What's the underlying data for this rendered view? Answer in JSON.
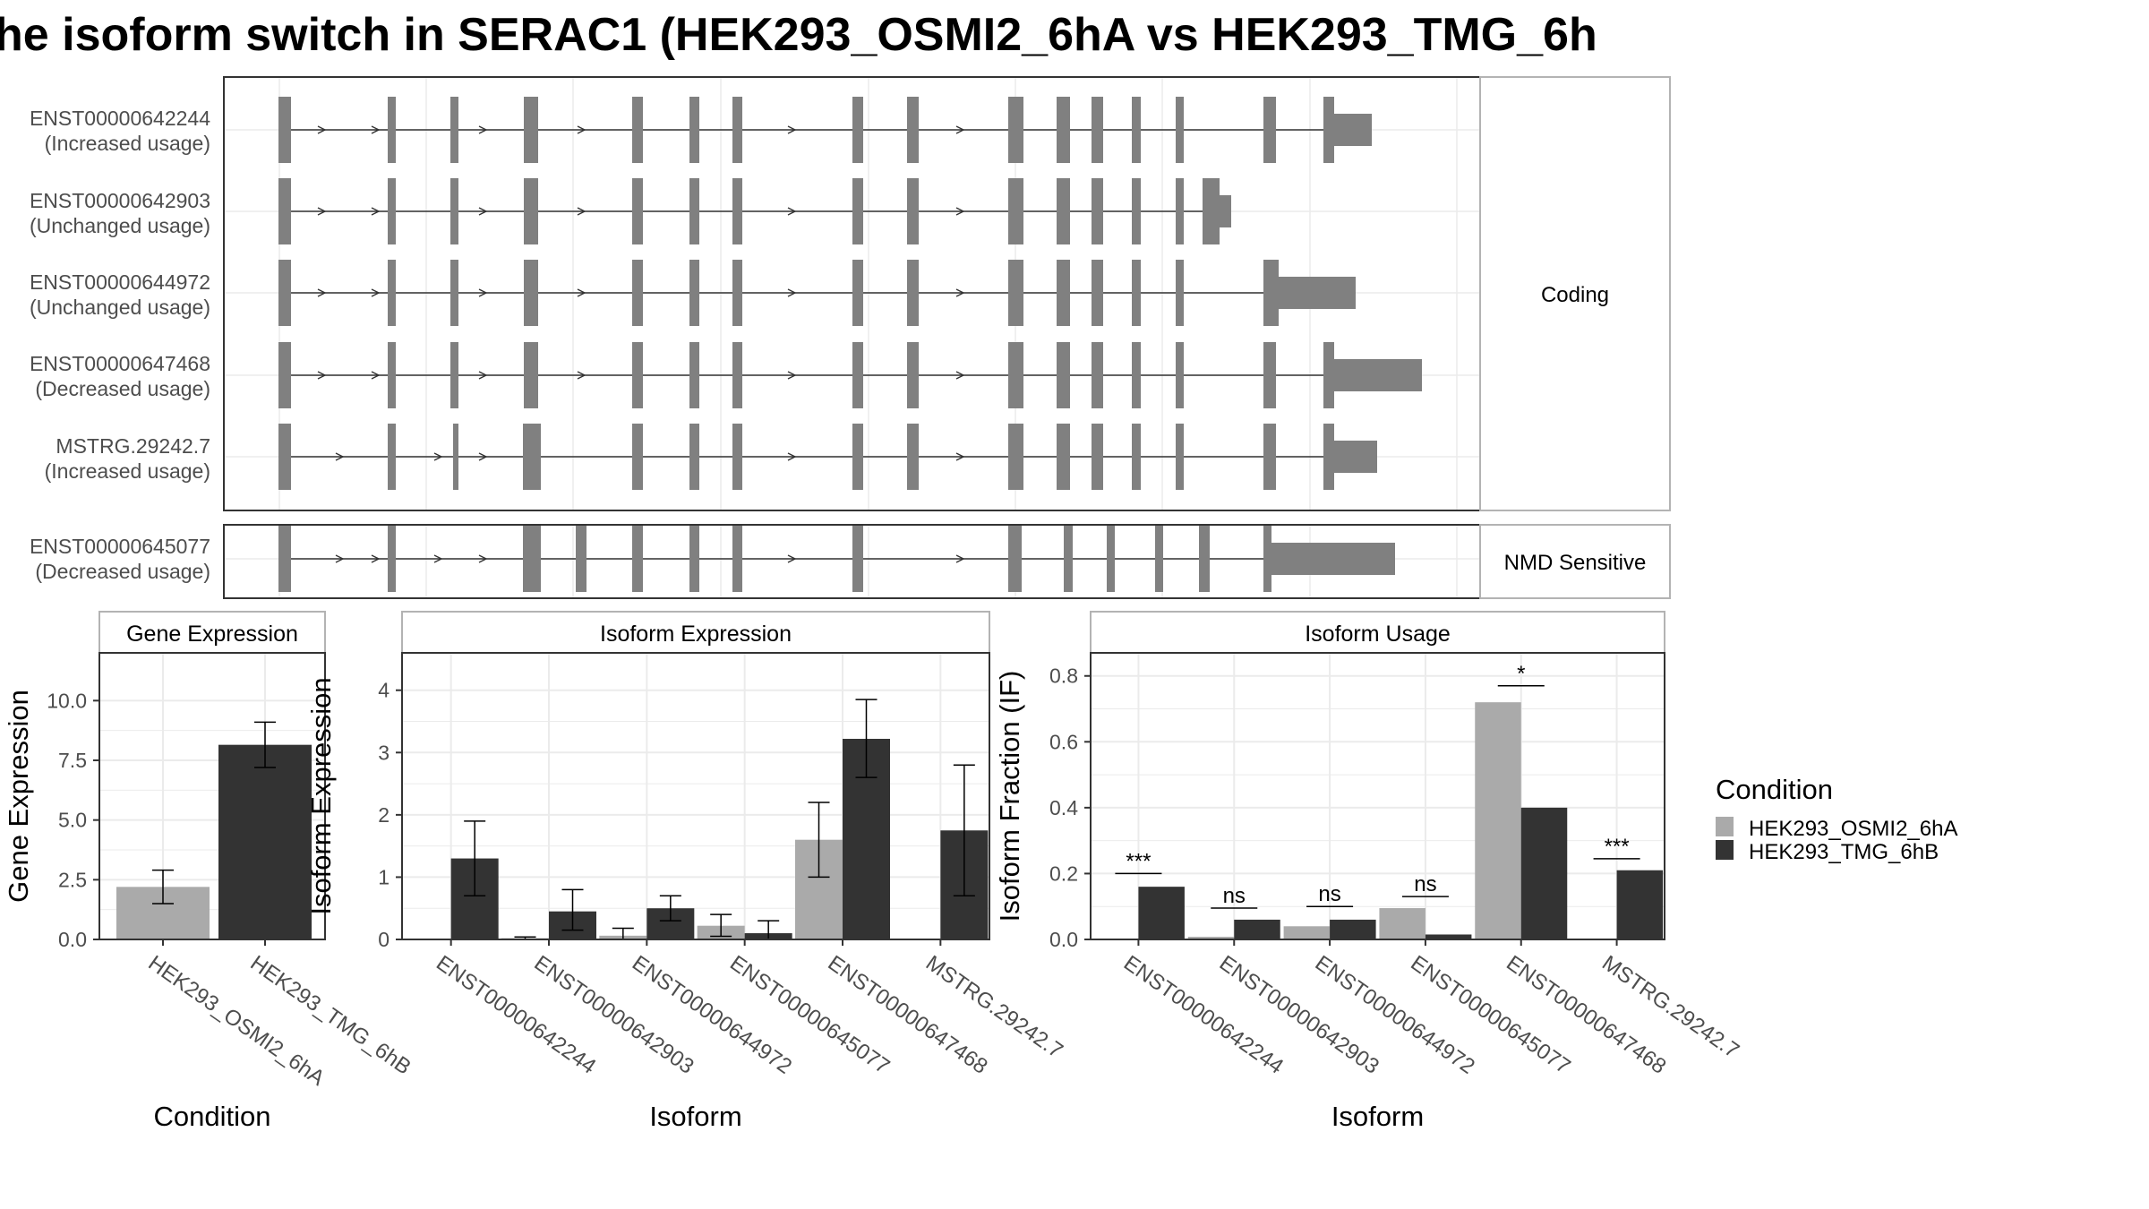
{
  "title": "he isoform switch in SERAC1 (HEK293_OSMI2_6hA vs HEK293_TMG_6h",
  "colors": {
    "exon": "#808080",
    "panel_border": "#333333",
    "strip_border": "#b3b3b3",
    "grid": "#ebebeb",
    "cond_a": "#aaaaaa",
    "cond_b": "#333333"
  },
  "structure": {
    "facets": [
      "Coding",
      "NMD Sensitive"
    ],
    "transcripts": [
      {
        "id": "ENST00000642244",
        "usage": "(Increased usage)",
        "facet": "Coding"
      },
      {
        "id": "ENST00000642903",
        "usage": "(Unchanged usage)",
        "facet": "Coding"
      },
      {
        "id": "ENST00000644972",
        "usage": "(Unchanged usage)",
        "facet": "Coding"
      },
      {
        "id": "ENST00000647468",
        "usage": "(Decreased usage)",
        "facet": "Coding"
      },
      {
        "id": "MSTRG.29242.7",
        "usage": "(Increased usage)",
        "facet": "Coding"
      },
      {
        "id": "ENST00000645077",
        "usage": "(Decreased usage)",
        "facet": "NMD Sensitive"
      }
    ]
  },
  "legend": {
    "title": "Condition",
    "items": [
      "HEK293_OSMI2_6hA",
      "HEK293_TMG_6hB"
    ]
  },
  "chart_data": [
    {
      "type": "bar",
      "title": "Gene Expression",
      "xlabel": "Condition",
      "ylabel": "Gene Expression",
      "ylim": [
        0,
        12
      ],
      "yticks": [
        "0.0",
        "2.5",
        "5.0",
        "7.5",
        "10.0"
      ],
      "categories": [
        "HEK293_OSMI2_6hA",
        "HEK293_TMG_6hB"
      ],
      "values": [
        2.2,
        8.15
      ],
      "err_low": [
        1.5,
        7.2
      ],
      "err_high": [
        2.9,
        9.1
      ]
    },
    {
      "type": "bar",
      "title": "Isoform Expression",
      "xlabel": "Isoform",
      "ylabel": "Isoform Expression",
      "ylim": [
        0,
        4.6
      ],
      "yticks": [
        "0",
        "1",
        "2",
        "3",
        "4"
      ],
      "categories": [
        "ENST00000642244",
        "ENST00000642903",
        "ENST00000644972",
        "ENST00000645077",
        "ENST00000647468",
        "MSTRG.29242.7"
      ],
      "series": [
        {
          "name": "HEK293_OSMI2_6hA",
          "values": [
            0.0,
            0.02,
            0.06,
            0.22,
            1.6,
            0.0
          ],
          "err_low": [
            0.0,
            0.0,
            0.0,
            0.05,
            1.0,
            0.0
          ],
          "err_high": [
            0.0,
            0.04,
            0.18,
            0.4,
            2.2,
            0.0
          ]
        },
        {
          "name": "HEK293_TMG_6hB",
          "values": [
            1.3,
            0.45,
            0.5,
            0.1,
            3.22,
            1.75
          ],
          "err_low": [
            0.7,
            0.15,
            0.3,
            0.0,
            2.6,
            0.7
          ],
          "err_high": [
            1.9,
            0.8,
            0.7,
            0.3,
            3.85,
            2.8
          ]
        }
      ]
    },
    {
      "type": "bar",
      "title": "Isoform Usage",
      "xlabel": "Isoform",
      "ylabel": "Isoform Fraction (IF)",
      "ylim": [
        0,
        0.87
      ],
      "yticks": [
        "0.0",
        "0.2",
        "0.4",
        "0.6",
        "0.8"
      ],
      "categories": [
        "ENST00000642244",
        "ENST00000642903",
        "ENST00000644972",
        "ENST00000645077",
        "ENST00000647468",
        "MSTRG.29242.7"
      ],
      "series": [
        {
          "name": "HEK293_OSMI2_6hA",
          "values": [
            0.0,
            0.008,
            0.04,
            0.095,
            0.72,
            0.0
          ]
        },
        {
          "name": "HEK293_TMG_6hB",
          "values": [
            0.16,
            0.06,
            0.06,
            0.015,
            0.4,
            0.21
          ]
        }
      ],
      "significance": [
        "***",
        "ns",
        "ns",
        "ns",
        "*",
        "***"
      ],
      "sig_level": [
        0.2,
        0.095,
        0.1,
        0.13,
        0.77,
        0.245
      ]
    }
  ]
}
